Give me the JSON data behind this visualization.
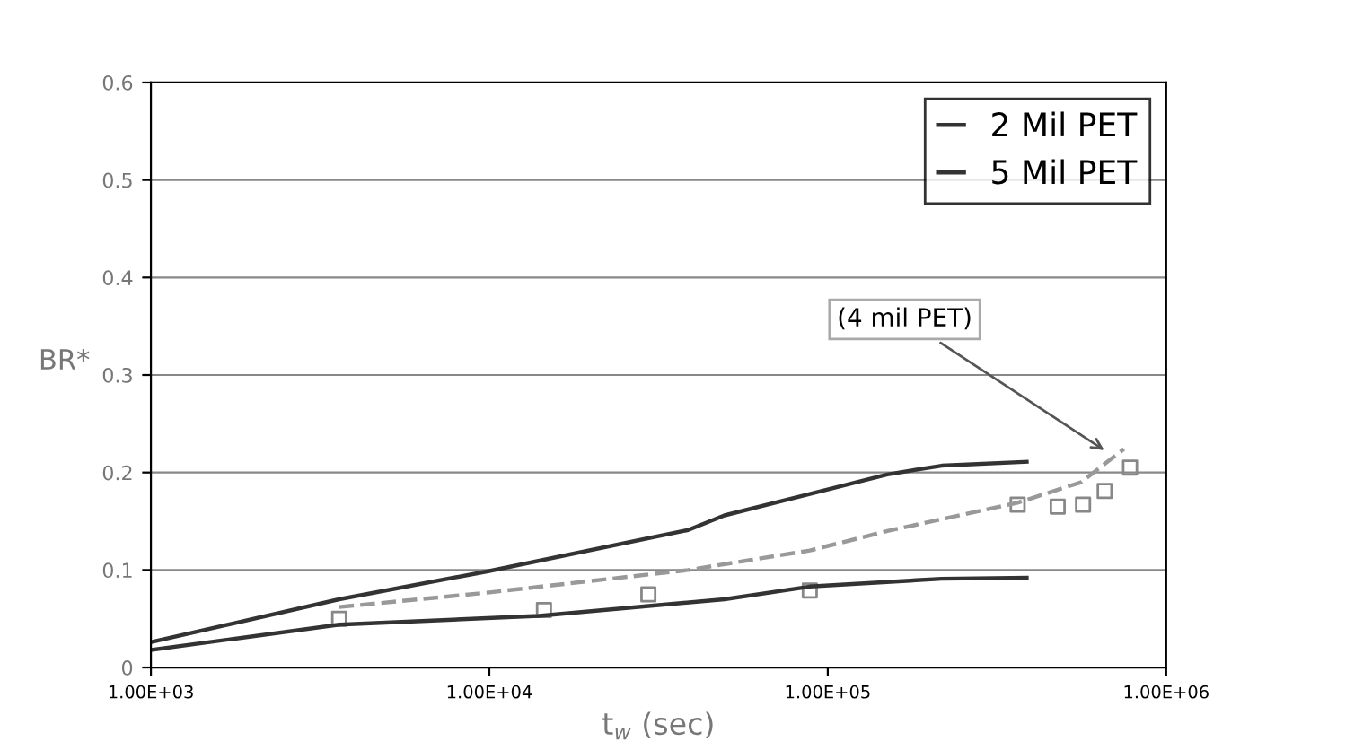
{
  "chart_data": {
    "type": "line",
    "xlabel": "t$_{w}$ (sec)",
    "ylabel": "BR*",
    "log": "x",
    "xlim": [
      1000,
      1000000
    ],
    "xticks": [
      {
        "value": 1000,
        "label": "1.00E+03"
      },
      {
        "value": 10000,
        "label": "1.00E+04"
      },
      {
        "value": 100000,
        "label": "1.00E+05"
      },
      {
        "value": 1000000,
        "label": "1.00E+06"
      }
    ],
    "ylim": [
      0,
      0.6
    ],
    "yticks": [
      0,
      0.1,
      0.2,
      0.3,
      0.4,
      0.5,
      0.6
    ],
    "grid": "y",
    "legend": "top right",
    "series": [
      {
        "name": "2 Mil PET",
        "color": "#333333",
        "x": [
          1000,
          3600,
          10000,
          38700,
          49500,
          88500,
          150000,
          217000,
          387000
        ],
        "values": [
          0.026,
          0.07,
          0.099,
          0.141,
          0.156,
          0.178,
          0.198,
          0.207,
          0.211
        ]
      },
      {
        "name": "5 Mil PET",
        "color": "#333333",
        "x": [
          1000,
          3600,
          14000,
          49500,
          88500,
          217000,
          387000
        ],
        "values": [
          0.018,
          0.044,
          0.053,
          0.07,
          0.083,
          0.091,
          0.092
        ]
      },
      {
        "color": "#999999",
        "line_style": "dashed",
        "x": [
          3600,
          10000,
          38700,
          88500,
          150000,
          364000,
          560000,
          750000
        ],
        "values": [
          0.062,
          0.077,
          0.1,
          0.12,
          0.14,
          0.169,
          0.19,
          0.224
        ]
      },
      {
        "type": "scatter",
        "marker": "square",
        "color": "#888888",
        "x": [
          3600,
          14500,
          29500,
          88500,
          364000,
          478000,
          568000,
          658000,
          782000
        ],
        "values": [
          0.05,
          0.059,
          0.075,
          0.079,
          0.167,
          0.165,
          0.167,
          0.181,
          0.205
        ]
      }
    ],
    "annotations": [
      {
        "text": "(4 mil PET)",
        "x": 675000,
        "y": 0.22
      }
    ]
  }
}
